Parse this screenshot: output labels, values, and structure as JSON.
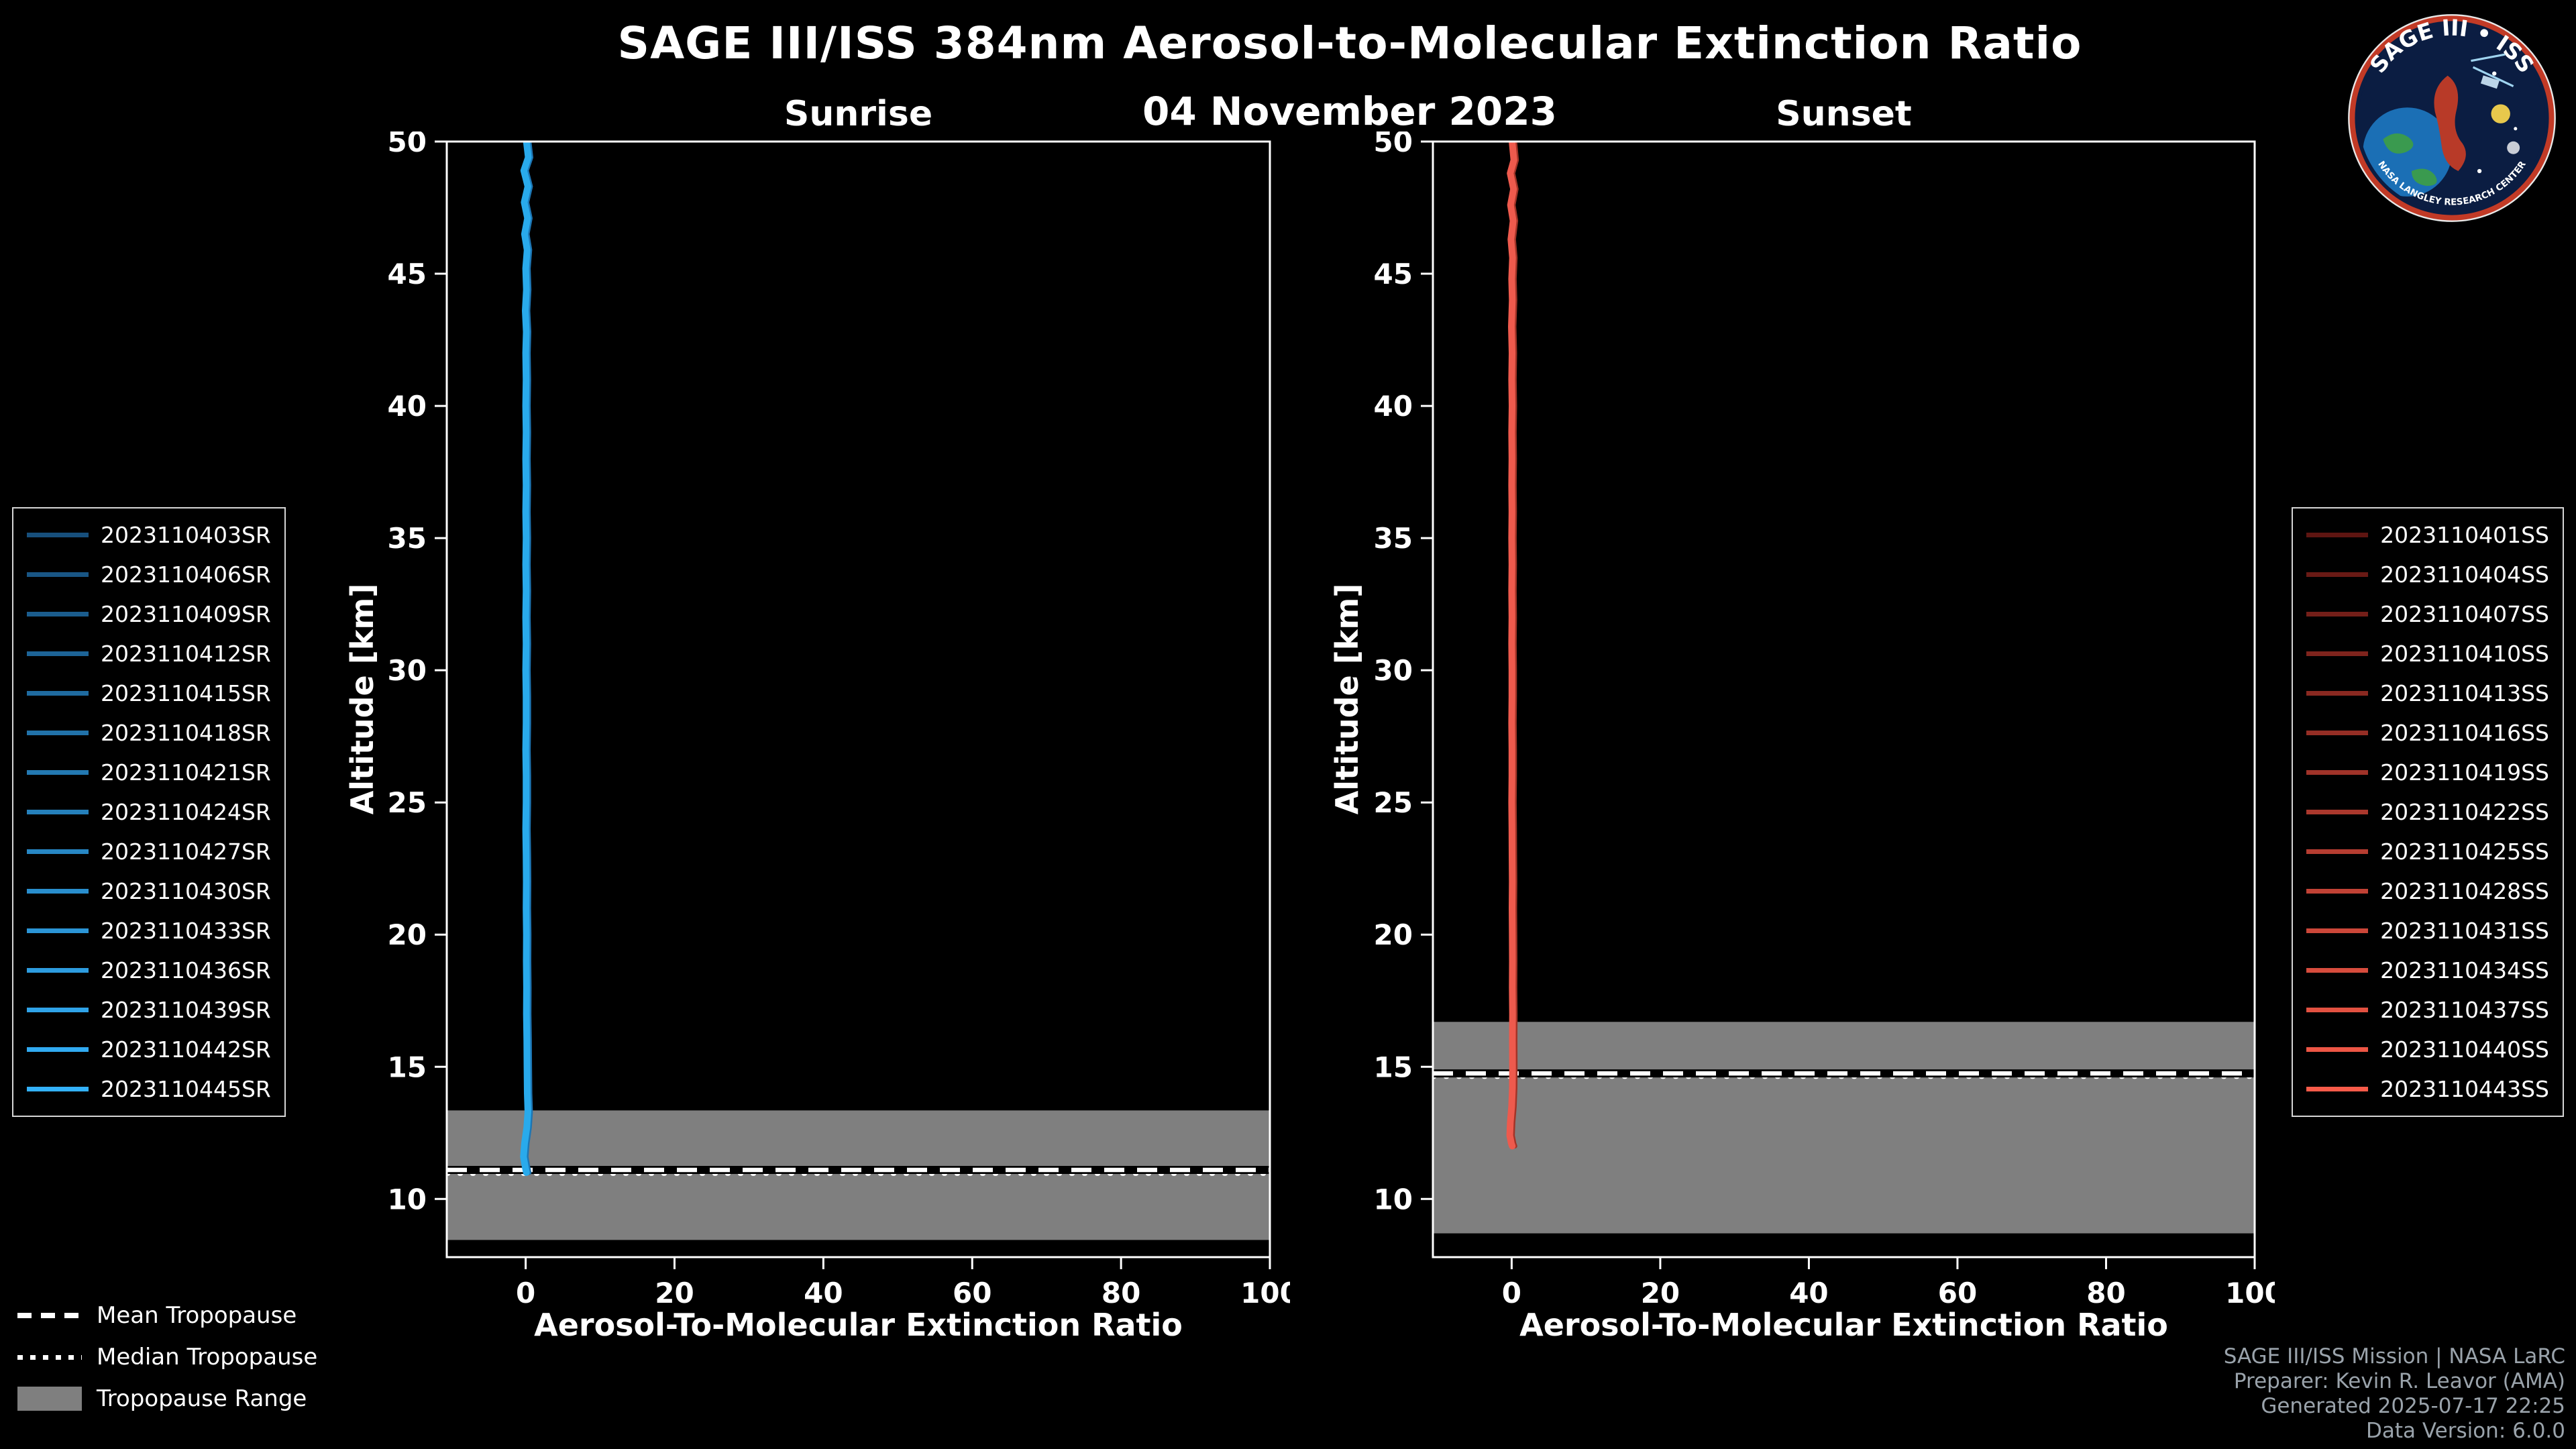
{
  "header": {
    "title": "SAGE III/ISS 384nm Aerosol-to-Molecular Extinction Ratio",
    "date": "04 November 2023"
  },
  "logo": {
    "title": "SAGE III • ISS",
    "subtitle": "NASA LANGLEY RESEARCH CENTER"
  },
  "tropopause_legend": {
    "items": [
      {
        "label": "Mean Tropopause",
        "style": "dashed"
      },
      {
        "label": "Median Tropopause",
        "style": "dotted"
      },
      {
        "label": "Tropopause Range",
        "style": "patch"
      }
    ]
  },
  "footer": {
    "lines": [
      "SAGE III/ISS Mission | NASA LaRC",
      "Preparer: Kevin R. Leavor (AMA)",
      "Generated 2025-07-17 22:25",
      "Data Version: 6.0.0"
    ]
  },
  "chart_data": [
    {
      "type": "line",
      "panel": "sunrise",
      "title": "Sunrise",
      "xlabel": "Aerosol-To-Molecular Extinction Ratio",
      "ylabel": "Altitude [km]",
      "xlim": [
        -10.6,
        100
      ],
      "ylim": [
        7.8,
        50
      ],
      "xticks": [
        0,
        20,
        40,
        60,
        80,
        100
      ],
      "yticks": [
        10,
        15,
        20,
        25,
        30,
        35,
        40,
        45,
        50
      ],
      "grid": false,
      "line_color": "#29aaec",
      "line_color_dark": "#1d76b4",
      "tropopause": {
        "range": [
          8.45,
          13.35
        ],
        "mean": 11.1,
        "median": 10.95,
        "band_color": "#7f7f7f"
      },
      "legend": [
        {
          "label": "2023110403SR",
          "color": "#174f7c"
        },
        {
          "label": "2023110406SR",
          "color": "#195685"
        },
        {
          "label": "2023110409SR",
          "color": "#1b5d8e"
        },
        {
          "label": "2023110412SR",
          "color": "#1d6497"
        },
        {
          "label": "2023110415SR",
          "color": "#1f6ba0"
        },
        {
          "label": "2023110418SR",
          "color": "#2172a9"
        },
        {
          "label": "2023110421SR",
          "color": "#2379b2"
        },
        {
          "label": "2023110424SR",
          "color": "#2580bb"
        },
        {
          "label": "2023110427SR",
          "color": "#2787c4"
        },
        {
          "label": "2023110430SR",
          "color": "#298ecd"
        },
        {
          "label": "2023110433SR",
          "color": "#2b95d6"
        },
        {
          "label": "2023110436SR",
          "color": "#2d9cdf"
        },
        {
          "label": "2023110439SR",
          "color": "#2fa3e8"
        },
        {
          "label": "2023110442SR",
          "color": "#31aaf1"
        },
        {
          "label": "2023110445SR",
          "color": "#33b1fa"
        }
      ],
      "profile": [
        [
          0.1,
          50
        ],
        [
          0.35,
          49.4
        ],
        [
          -0.25,
          48.9
        ],
        [
          0.3,
          48.3
        ],
        [
          -0.2,
          47.7
        ],
        [
          0.25,
          47.1
        ],
        [
          -0.15,
          46.5
        ],
        [
          0.2,
          45.9
        ],
        [
          0.0,
          45.2
        ],
        [
          0.1,
          44.4
        ],
        [
          -0.05,
          43.6
        ],
        [
          0.08,
          42.8
        ],
        [
          0.0,
          42.0
        ],
        [
          0.05,
          41.0
        ],
        [
          0.0,
          40.0
        ],
        [
          0.05,
          39.0
        ],
        [
          0.0,
          38.0
        ],
        [
          0.05,
          37.0
        ],
        [
          0.0,
          36.0
        ],
        [
          0.05,
          35.0
        ],
        [
          0.0,
          34.0
        ],
        [
          0.05,
          33.0
        ],
        [
          0.0,
          32.0
        ],
        [
          0.05,
          31.0
        ],
        [
          0.0,
          30.0
        ],
        [
          0.05,
          29.0
        ],
        [
          0.05,
          28.0
        ],
        [
          0.0,
          27.0
        ],
        [
          0.05,
          26.0
        ],
        [
          0.05,
          25.0
        ],
        [
          0.0,
          24.0
        ],
        [
          0.05,
          23.0
        ],
        [
          0.08,
          22.0
        ],
        [
          0.05,
          21.0
        ],
        [
          0.1,
          20.0
        ],
        [
          0.08,
          19.0
        ],
        [
          0.12,
          18.0
        ],
        [
          0.1,
          17.0
        ],
        [
          0.15,
          16.0
        ],
        [
          0.18,
          15.0
        ],
        [
          0.22,
          14.0
        ],
        [
          0.3,
          13.3
        ],
        [
          0.15,
          12.7
        ],
        [
          -0.15,
          12.1
        ],
        [
          -0.3,
          11.6
        ],
        [
          -0.05,
          11.2
        ],
        [
          0.1,
          11.0
        ]
      ]
    },
    {
      "type": "line",
      "panel": "sunset",
      "title": "Sunset",
      "xlabel": "Aerosol-To-Molecular Extinction Ratio",
      "ylabel": "Altitude [km]",
      "xlim": [
        -10.6,
        100
      ],
      "ylim": [
        7.8,
        50
      ],
      "xticks": [
        0,
        20,
        40,
        60,
        80,
        100
      ],
      "yticks": [
        10,
        15,
        20,
        25,
        30,
        35,
        40,
        45,
        50
      ],
      "grid": false,
      "line_color": "#ee5a4d",
      "line_color_dark": "#a33327",
      "tropopause": {
        "range": [
          8.7,
          16.7
        ],
        "mean": 14.75,
        "median": 14.62,
        "band_color": "#7f7f7f"
      },
      "legend": [
        {
          "label": "2023110401SS",
          "color": "#5e1511"
        },
        {
          "label": "2023110404SS",
          "color": "#691a15"
        },
        {
          "label": "2023110407SS",
          "color": "#741f19"
        },
        {
          "label": "2023110410SS",
          "color": "#7f241d"
        },
        {
          "label": "2023110413SS",
          "color": "#8a2921"
        },
        {
          "label": "2023110416SS",
          "color": "#952e25"
        },
        {
          "label": "2023110419SS",
          "color": "#a03329"
        },
        {
          "label": "2023110422SS",
          "color": "#ab382d"
        },
        {
          "label": "2023110425SS",
          "color": "#b63d31"
        },
        {
          "label": "2023110428SS",
          "color": "#c14235"
        },
        {
          "label": "2023110431SS",
          "color": "#cc4739"
        },
        {
          "label": "2023110434SS",
          "color": "#d74c3d"
        },
        {
          "label": "2023110437SS",
          "color": "#e25141"
        },
        {
          "label": "2023110440SS",
          "color": "#ed5645"
        },
        {
          "label": "2023110443SS",
          "color": "#f85b49"
        }
      ],
      "profile": [
        [
          0.05,
          50
        ],
        [
          0.3,
          49.3
        ],
        [
          -0.2,
          48.8
        ],
        [
          0.25,
          48.2
        ],
        [
          -0.15,
          47.6
        ],
        [
          0.2,
          47.0
        ],
        [
          -0.1,
          46.3
        ],
        [
          0.12,
          45.6
        ],
        [
          0.0,
          44.8
        ],
        [
          0.08,
          44.0
        ],
        [
          -0.04,
          43.0
        ],
        [
          0.05,
          42.0
        ],
        [
          0.0,
          41.0
        ],
        [
          0.05,
          40.0
        ],
        [
          0.0,
          39.0
        ],
        [
          0.04,
          38.0
        ],
        [
          0.0,
          37.0
        ],
        [
          0.04,
          36.0
        ],
        [
          0.0,
          35.0
        ],
        [
          0.04,
          34.0
        ],
        [
          0.0,
          33.0
        ],
        [
          0.04,
          32.0
        ],
        [
          0.0,
          31.0
        ],
        [
          0.04,
          30.0
        ],
        [
          0.04,
          29.0
        ],
        [
          0.0,
          28.0
        ],
        [
          0.04,
          27.0
        ],
        [
          0.04,
          26.0
        ],
        [
          0.0,
          25.0
        ],
        [
          0.04,
          24.0
        ],
        [
          0.05,
          23.0
        ],
        [
          0.08,
          22.0
        ],
        [
          0.05,
          21.0
        ],
        [
          0.08,
          20.0
        ],
        [
          0.1,
          19.0
        ],
        [
          0.08,
          18.0
        ],
        [
          0.12,
          17.0
        ],
        [
          0.1,
          16.0
        ],
        [
          0.12,
          15.0
        ],
        [
          0.1,
          14.2
        ],
        [
          0.0,
          13.5
        ],
        [
          -0.18,
          12.9
        ],
        [
          -0.25,
          12.4
        ],
        [
          -0.05,
          12.1
        ],
        [
          0.08,
          12.0
        ]
      ]
    }
  ]
}
